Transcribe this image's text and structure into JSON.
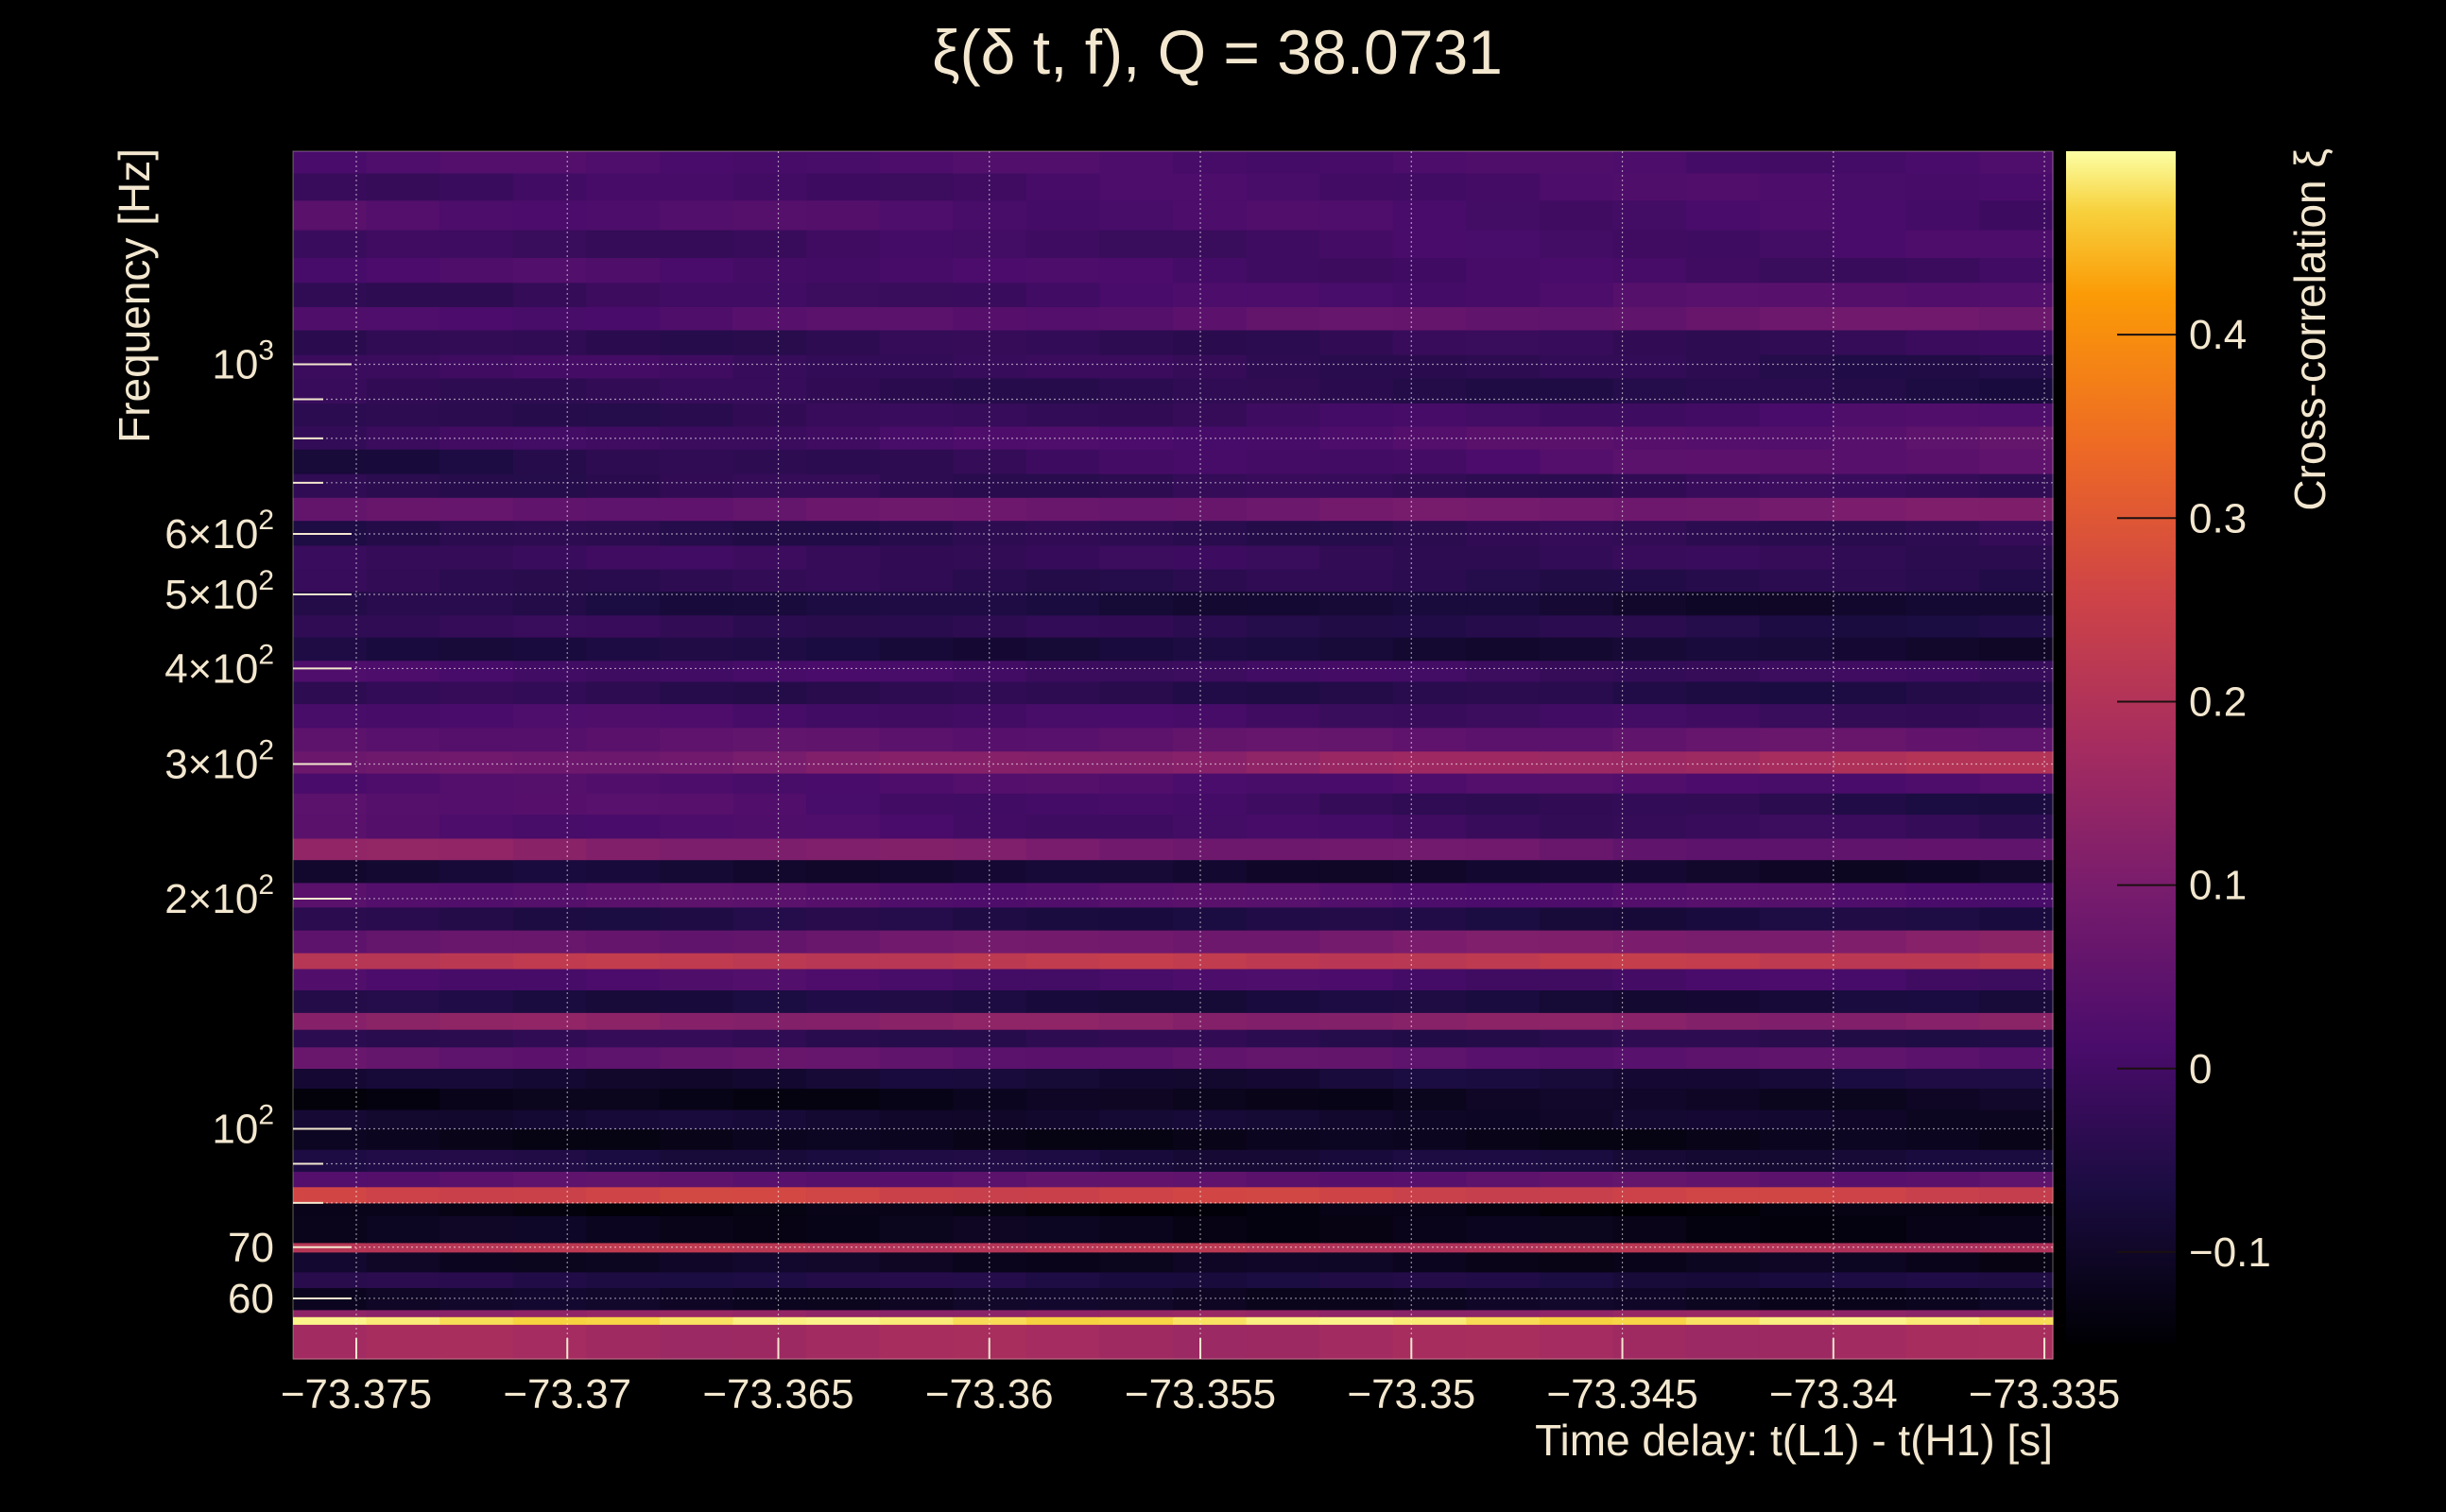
{
  "chart_data": {
    "type": "heatmap",
    "title": "ξ(δ t, f), Q = 38.0731",
    "xlabel": "Time delay: t(L1) - t(H1) [s]",
    "ylabel": "Frequency [Hz]",
    "colorbar_label": "Cross-correlation ξ",
    "colormap": "inferno",
    "xlim": [
      -73.3765,
      -73.3348
    ],
    "ylim": [
      50,
      1900
    ],
    "y_scale": "log",
    "clim": [
      -0.15,
      0.5
    ],
    "grid": true,
    "x_ticks": [
      {
        "value": -73.375,
        "label": "−73.375"
      },
      {
        "value": -73.37,
        "label": "−73.37"
      },
      {
        "value": -73.365,
        "label": "−73.365"
      },
      {
        "value": -73.36,
        "label": "−73.36"
      },
      {
        "value": -73.355,
        "label": "−73.355"
      },
      {
        "value": -73.35,
        "label": "−73.35"
      },
      {
        "value": -73.345,
        "label": "−73.345"
      },
      {
        "value": -73.34,
        "label": "−73.34"
      },
      {
        "value": -73.335,
        "label": "−73.335"
      }
    ],
    "y_ticks": [
      {
        "value": 60,
        "base": "60",
        "exp": ""
      },
      {
        "value": 70,
        "base": "70",
        "exp": ""
      },
      {
        "value": 100,
        "base": "10",
        "exp": "2"
      },
      {
        "value": 200,
        "base": "2×10",
        "exp": "2"
      },
      {
        "value": 300,
        "base": "3×10",
        "exp": "2"
      },
      {
        "value": 400,
        "base": "4×10",
        "exp": "2"
      },
      {
        "value": 500,
        "base": "5×10",
        "exp": "2"
      },
      {
        "value": 600,
        "base": "6×10",
        "exp": "2"
      },
      {
        "value": 1000,
        "base": "10",
        "exp": "3"
      }
    ],
    "y_minor_ticks": [
      80,
      90,
      700,
      800,
      900
    ],
    "colorbar_ticks": [
      {
        "value": -0.1,
        "label": "−0.1"
      },
      {
        "value": 0,
        "label": "0"
      },
      {
        "value": 0.1,
        "label": "0.1"
      },
      {
        "value": 0.2,
        "label": "0.2"
      },
      {
        "value": 0.3,
        "label": "0.3"
      },
      {
        "value": 0.4,
        "label": "0.4"
      }
    ],
    "frequency_bands": [
      {
        "f_low": 50,
        "f_high": 55.5,
        "start": 0.17,
        "end": 0.17
      },
      {
        "f_low": 55.5,
        "f_high": 56.8,
        "start": 0.48,
        "end": 0.48
      },
      {
        "f_low": 56.8,
        "f_high": 58,
        "start": 0.14,
        "end": 0.14
      },
      {
        "f_low": 58,
        "f_high": 62,
        "start": -0.1,
        "end": -0.11
      },
      {
        "f_low": 62,
        "f_high": 65,
        "start": -0.05,
        "end": -0.07
      },
      {
        "f_low": 65,
        "f_high": 69,
        "start": -0.1,
        "end": -0.12
      },
      {
        "f_low": 69,
        "f_high": 71,
        "start": 0.22,
        "end": 0.2
      },
      {
        "f_low": 71,
        "f_high": 77,
        "start": -0.11,
        "end": -0.13
      },
      {
        "f_low": 77,
        "f_high": 80,
        "start": -0.13,
        "end": -0.14
      },
      {
        "f_low": 80,
        "f_high": 84,
        "start": 0.26,
        "end": 0.25
      },
      {
        "f_low": 84,
        "f_high": 88,
        "start": 0.04,
        "end": 0.05
      },
      {
        "f_low": 88,
        "f_high": 94,
        "start": -0.06,
        "end": -0.08
      },
      {
        "f_low": 94,
        "f_high": 100,
        "start": -0.12,
        "end": -0.12
      },
      {
        "f_low": 100,
        "f_high": 106,
        "start": -0.08,
        "end": -0.1
      },
      {
        "f_low": 106,
        "f_high": 113,
        "start": -0.13,
        "end": -0.1
      },
      {
        "f_low": 113,
        "f_high": 120,
        "start": -0.09,
        "end": -0.07
      },
      {
        "f_low": 120,
        "f_high": 128,
        "start": 0.06,
        "end": 0.04
      },
      {
        "f_low": 128,
        "f_high": 135,
        "start": -0.03,
        "end": -0.05
      },
      {
        "f_low": 135,
        "f_high": 142,
        "start": 0.13,
        "end": 0.12
      },
      {
        "f_low": 142,
        "f_high": 152,
        "start": -0.06,
        "end": -0.08
      },
      {
        "f_low": 152,
        "f_high": 162,
        "start": 0.02,
        "end": 0.0
      },
      {
        "f_low": 162,
        "f_high": 170,
        "start": 0.22,
        "end": 0.23
      },
      {
        "f_low": 170,
        "f_high": 182,
        "start": 0.05,
        "end": 0.12
      },
      {
        "f_low": 182,
        "f_high": 195,
        "start": -0.05,
        "end": -0.07
      },
      {
        "f_low": 195,
        "f_high": 210,
        "start": 0.04,
        "end": 0.02
      },
      {
        "f_low": 210,
        "f_high": 225,
        "start": -0.08,
        "end": -0.1
      },
      {
        "f_low": 225,
        "f_high": 240,
        "start": 0.14,
        "end": 0.04
      },
      {
        "f_low": 240,
        "f_high": 258,
        "start": 0.03,
        "end": -0.03
      },
      {
        "f_low": 258,
        "f_high": 275,
        "start": 0.05,
        "end": -0.06
      },
      {
        "f_low": 275,
        "f_high": 292,
        "start": 0.02,
        "end": 0.02
      },
      {
        "f_low": 292,
        "f_high": 312,
        "start": 0.06,
        "end": 0.2
      },
      {
        "f_low": 312,
        "f_high": 335,
        "start": 0.04,
        "end": 0.06
      },
      {
        "f_low": 335,
        "f_high": 360,
        "start": 0.02,
        "end": -0.02
      },
      {
        "f_low": 360,
        "f_high": 385,
        "start": -0.03,
        "end": -0.06
      },
      {
        "f_low": 385,
        "f_high": 410,
        "start": 0.01,
        "end": -0.02
      },
      {
        "f_low": 410,
        "f_high": 440,
        "start": -0.06,
        "end": -0.09
      },
      {
        "f_low": 440,
        "f_high": 470,
        "start": -0.02,
        "end": -0.06
      },
      {
        "f_low": 470,
        "f_high": 505,
        "start": -0.05,
        "end": -0.1
      },
      {
        "f_low": 505,
        "f_high": 540,
        "start": -0.03,
        "end": -0.05
      },
      {
        "f_low": 540,
        "f_high": 580,
        "start": -0.01,
        "end": -0.03
      },
      {
        "f_low": 580,
        "f_high": 625,
        "start": -0.05,
        "end": -0.03
      },
      {
        "f_low": 625,
        "f_high": 670,
        "start": 0.05,
        "end": 0.1
      },
      {
        "f_low": 670,
        "f_high": 720,
        "start": -0.04,
        "end": -0.02
      },
      {
        "f_low": 720,
        "f_high": 775,
        "start": -0.07,
        "end": 0.06
      },
      {
        "f_low": 775,
        "f_high": 830,
        "start": -0.02,
        "end": 0.05
      },
      {
        "f_low": 830,
        "f_high": 890,
        "start": -0.05,
        "end": 0.02
      },
      {
        "f_low": 890,
        "f_high": 960,
        "start": -0.02,
        "end": -0.06
      },
      {
        "f_low": 960,
        "f_high": 1030,
        "start": 0.0,
        "end": -0.05
      },
      {
        "f_low": 1030,
        "f_high": 1110,
        "start": -0.04,
        "end": -0.02
      },
      {
        "f_low": 1110,
        "f_high": 1190,
        "start": 0.01,
        "end": 0.08
      },
      {
        "f_low": 1190,
        "f_high": 1280,
        "start": -0.03,
        "end": 0.04
      },
      {
        "f_low": 1280,
        "f_high": 1380,
        "start": 0.02,
        "end": -0.01
      },
      {
        "f_low": 1380,
        "f_high": 1500,
        "start": -0.02,
        "end": 0.01
      },
      {
        "f_low": 1500,
        "f_high": 1640,
        "start": 0.03,
        "end": 0.0
      },
      {
        "f_low": 1640,
        "f_high": 1780,
        "start": -0.01,
        "end": 0.02
      },
      {
        "f_low": 1780,
        "f_high": 1900,
        "start": 0.02,
        "end": 0.01
      }
    ]
  }
}
